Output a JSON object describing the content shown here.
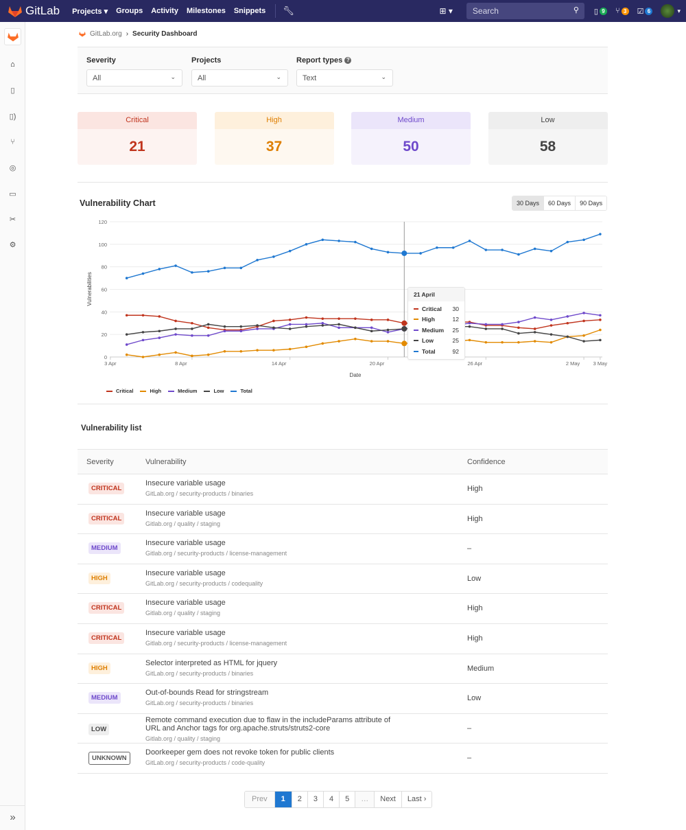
{
  "nav": {
    "brand": "GitLab",
    "links": [
      "Projects",
      "Groups",
      "Activity",
      "Milestones",
      "Snippets"
    ],
    "search_placeholder": "Search",
    "issues_count": "9",
    "mr_count": "3",
    "todos_count": "6"
  },
  "breadcrumb": {
    "group": "GitLab.org",
    "page": "Security Dashboard"
  },
  "filters": [
    {
      "label": "Severity",
      "value": "All"
    },
    {
      "label": "Projects",
      "value": "All"
    },
    {
      "label": "Report types",
      "value": "Text"
    }
  ],
  "summary": [
    {
      "label": "Critical",
      "count": "21",
      "color": "#c0341d",
      "head": "#fbe5e1",
      "body": "#fdf3f1"
    },
    {
      "label": "High",
      "count": "37",
      "color": "#de7e00",
      "head": "#fef0dc",
      "body": "#fef8f0"
    },
    {
      "label": "Medium",
      "count": "50",
      "color": "#6e49cb",
      "head": "#ebe5fa",
      "body": "#f5f2fc"
    },
    {
      "label": "Low",
      "count": "58",
      "color": "#444444",
      "head": "#eeeeee",
      "body": "#f5f5f5"
    }
  ],
  "chart": {
    "title": "Vulnerability Chart",
    "ranges": [
      "30 Days",
      "60 Days",
      "90 Days"
    ],
    "selected_range": "30 Days"
  },
  "chart_data": {
    "type": "line",
    "xlabel": "Date",
    "ylabel": "Vulnerabilities",
    "ylim": [
      0,
      120
    ],
    "yticks": [
      0,
      20,
      40,
      60,
      80,
      100,
      120
    ],
    "grid": true,
    "legend": "bottom-left",
    "x": [
      "4 Apr",
      "5 Apr",
      "6 Apr",
      "7 Apr",
      "8 Apr",
      "9 Apr",
      "10 Apr",
      "11 Apr",
      "12 Apr",
      "13 Apr",
      "14 Apr",
      "15 Apr",
      "16 Apr",
      "17 Apr",
      "18 Apr",
      "19 Apr",
      "20 Apr",
      "21 Apr",
      "22 Apr",
      "23 Apr",
      "24 Apr",
      "25 Apr",
      "26 Apr",
      "27 Apr",
      "28 Apr",
      "29 Apr",
      "30 Apr",
      "1 May",
      "2 May",
      "3 May"
    ],
    "xticks": [
      {
        "label": "3 Apr",
        "at": -1
      },
      {
        "label": "8 Apr",
        "at": 4
      },
      {
        "label": "14 Apr",
        "at": 10
      },
      {
        "label": "20 Apr",
        "at": 16
      },
      {
        "label": "26 Apr",
        "at": 22
      },
      {
        "label": "2 May",
        "at": 28
      },
      {
        "label": "3 May",
        "at": 29
      }
    ],
    "series": [
      {
        "name": "Critical",
        "color": "#c0341d",
        "values": [
          37,
          37,
          36,
          32,
          30,
          26,
          24,
          24,
          27,
          32,
          33,
          35,
          34,
          34,
          34,
          33,
          33,
          30,
          30,
          30,
          31,
          31,
          28,
          28,
          26,
          25,
          28,
          30,
          32,
          33
        ]
      },
      {
        "name": "High",
        "color": "#e28a00",
        "values": [
          2,
          0,
          2,
          4,
          1,
          2,
          5,
          5,
          6,
          6,
          7,
          9,
          12,
          14,
          16,
          14,
          14,
          12,
          13,
          14,
          14,
          15,
          13,
          13,
          13,
          14,
          13,
          18,
          19,
          24
        ]
      },
      {
        "name": "Medium",
        "color": "#6e49cb",
        "values": [
          11,
          15,
          17,
          20,
          19,
          19,
          23,
          23,
          25,
          25,
          29,
          29,
          30,
          26,
          26,
          26,
          22,
          25,
          26,
          27,
          28,
          30,
          29,
          29,
          31,
          35,
          33,
          36,
          39,
          37
        ]
      },
      {
        "name": "Low",
        "color": "#444444",
        "values": [
          20,
          22,
          23,
          25,
          25,
          29,
          27,
          27,
          28,
          26,
          25,
          27,
          28,
          29,
          26,
          23,
          24,
          25,
          26,
          27,
          27,
          27,
          25,
          25,
          21,
          22,
          20,
          18,
          14,
          15
        ]
      },
      {
        "name": "Total",
        "color": "#1f78d1",
        "values": [
          70,
          74,
          78,
          81,
          75,
          76,
          79,
          79,
          86,
          89,
          94,
          100,
          104,
          103,
          102,
          96,
          93,
          92,
          92,
          97,
          97,
          103,
          95,
          95,
          91,
          96,
          94,
          102,
          104,
          109
        ]
      }
    ],
    "tooltip": {
      "date": "21 April",
      "index": 17,
      "rows": [
        {
          "name": "Critical",
          "value": "30"
        },
        {
          "name": "High",
          "value": "12"
        },
        {
          "name": "Medium",
          "value": "25"
        },
        {
          "name": "Low",
          "value": "25"
        },
        {
          "name": "Total",
          "value": "92"
        }
      ]
    }
  },
  "list": {
    "title": "Vulnerability list",
    "headers": [
      "Severity",
      "Vulnerability",
      "Confidence"
    ],
    "rows": [
      {
        "severity": "CRITICAL",
        "title": "Insecure variable usage",
        "project": "GitLab.org / security-products / binaries",
        "confidence": "High"
      },
      {
        "severity": "CRITICAL",
        "title": "Insecure variable usage",
        "project": "Gitlab.org / quality / staging",
        "confidence": "High"
      },
      {
        "severity": "MEDIUM",
        "title": "Insecure variable usage",
        "project": "Gitlab.org / security-products / license-management",
        "confidence": "–"
      },
      {
        "severity": "HIGH",
        "title": "Insecure variable usage",
        "project": "GitLab.org / security-products / codequality",
        "confidence": "Low"
      },
      {
        "severity": "CRITICAL",
        "title": "Insecure variable usage",
        "project": "Gitlab.org / quality / staging",
        "confidence": "High"
      },
      {
        "severity": "CRITICAL",
        "title": "Insecure variable usage",
        "project": "Gitlab.org / security-products / license-management",
        "confidence": "High"
      },
      {
        "severity": "HIGH",
        "title": "Selector interpreted as HTML for jquery",
        "project": "GitLab.org / security-products / binaries",
        "confidence": "Medium"
      },
      {
        "severity": "MEDIUM",
        "title": "Out-of-bounds Read for stringstream",
        "project": "GitLab.org / security-products / binaries",
        "confidence": "Low"
      },
      {
        "severity": "LOW",
        "title": "Remote command execution due to flaw in the includeParams attribute of URL and Anchor tags for org.apache.struts/struts2-core",
        "project": "Gitlab.org / quality / staging",
        "confidence": "–"
      },
      {
        "severity": "UNKNOWN",
        "title": "Doorkeeper gem does not revoke token for public clients",
        "project": "GitLab.org / security-products / code-quality",
        "confidence": "–"
      }
    ]
  },
  "pagination": {
    "prev": "Prev",
    "pages": [
      "1",
      "2",
      "3",
      "4",
      "5"
    ],
    "current": "1",
    "ellipsis": "…",
    "next": "Next",
    "last": "Last ›"
  }
}
